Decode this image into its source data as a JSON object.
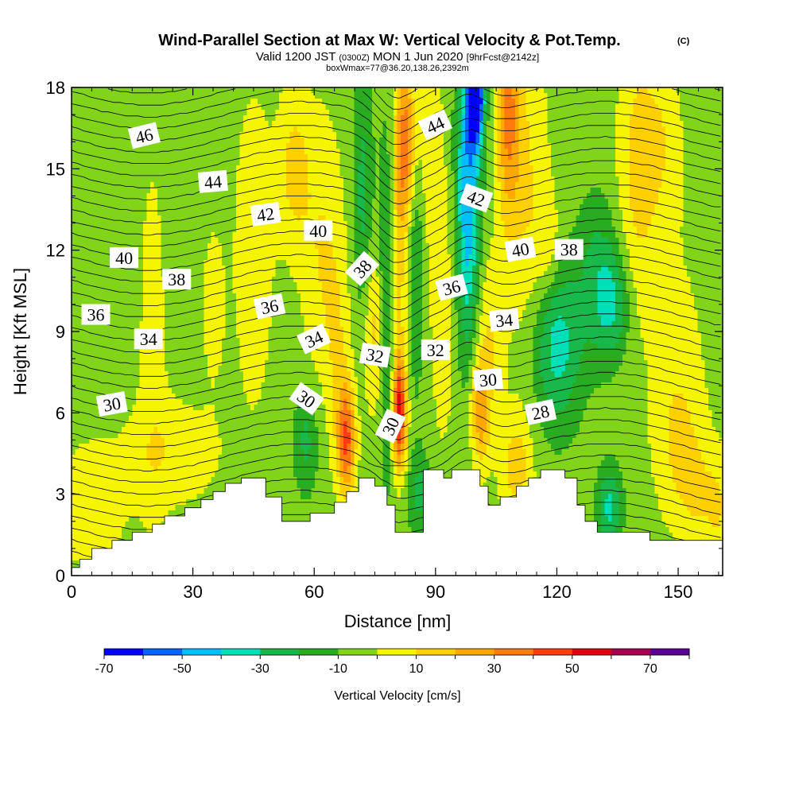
{
  "title": "Wind-Parallel Section at Max W: Vertical Velocity & Pot.Temp.",
  "copyright": "(C)",
  "subtitle": {
    "valid": "Valid 1200 JST",
    "utc": "(0300Z)",
    "date": "MON 1 Jun 2020",
    "fcst": "[9hrFcst@2142z]"
  },
  "box_info": "boxWmax=77@36.20,138.26,2392m",
  "chart_data": {
    "type": "heatmap",
    "xlabel": "Distance [nm]",
    "ylabel": "Height [Kft MSL]",
    "xlim": [
      0,
      161
    ],
    "ylim": [
      0,
      18
    ],
    "x_ticks": [
      0,
      30,
      60,
      90,
      120,
      150
    ],
    "y_ticks": [
      0,
      3,
      6,
      9,
      12,
      15,
      18
    ],
    "x_tick_labels": [
      "0",
      "30",
      "60",
      "90",
      "120",
      "150"
    ],
    "y_tick_labels": [
      "0",
      "3",
      "6",
      "9",
      "12",
      "15",
      "18"
    ],
    "colorbar": {
      "label": "Vertical Velocity [cm/s]",
      "levels": [
        -70,
        -60,
        -50,
        -40,
        -30,
        -20,
        -10,
        0,
        10,
        20,
        30,
        40,
        50,
        60,
        70,
        80
      ],
      "tick_values": [
        -70,
        -50,
        -30,
        -10,
        10,
        30,
        50,
        70
      ],
      "tick_labels": [
        "-70",
        "-50",
        "-30",
        "-10",
        "10",
        "30",
        "50",
        "70"
      ],
      "colors": [
        "#0000ff",
        "#0066ff",
        "#00bfff",
        "#00e0b8",
        "#18b84a",
        "#2aac22",
        "#82d41a",
        "#f5f500",
        "#ffd000",
        "#ffa800",
        "#ff7a10",
        "#ff3c10",
        "#e00010",
        "#a80050",
        "#5a0090"
      ]
    },
    "terrain_kft": [
      [
        0,
        0.3
      ],
      [
        2,
        0.3
      ],
      [
        2,
        0.6
      ],
      [
        5,
        0.6
      ],
      [
        5,
        1.0
      ],
      [
        10,
        1.0
      ],
      [
        10,
        1.3
      ],
      [
        15,
        1.3
      ],
      [
        15,
        1.6
      ],
      [
        20,
        1.6
      ],
      [
        20,
        1.9
      ],
      [
        23,
        1.9
      ],
      [
        23,
        2.2
      ],
      [
        28,
        2.2
      ],
      [
        28,
        2.5
      ],
      [
        32,
        2.5
      ],
      [
        32,
        2.8
      ],
      [
        35,
        2.8
      ],
      [
        35,
        3.1
      ],
      [
        38,
        3.1
      ],
      [
        38,
        3.4
      ],
      [
        42,
        3.4
      ],
      [
        42,
        3.6
      ],
      [
        48,
        3.6
      ],
      [
        48,
        2.9
      ],
      [
        52,
        2.9
      ],
      [
        52,
        2.0
      ],
      [
        59,
        2.0
      ],
      [
        59,
        2.3
      ],
      [
        65,
        2.3
      ],
      [
        65,
        2.7
      ],
      [
        68,
        2.7
      ],
      [
        68,
        3.1
      ],
      [
        71,
        3.1
      ],
      [
        71,
        3.6
      ],
      [
        75,
        3.6
      ],
      [
        75,
        3.3
      ],
      [
        78,
        3.3
      ],
      [
        78,
        2.6
      ],
      [
        80,
        2.6
      ],
      [
        80,
        1.6
      ],
      [
        83,
        1.6
      ],
      [
        83,
        1.6
      ],
      [
        87,
        1.6
      ],
      [
        87,
        3.9
      ],
      [
        92,
        3.9
      ],
      [
        92,
        3.6
      ],
      [
        94,
        3.6
      ],
      [
        94,
        3.9
      ],
      [
        101,
        3.9
      ],
      [
        101,
        3.3
      ],
      [
        103,
        3.3
      ],
      [
        103,
        2.6
      ],
      [
        106,
        2.6
      ],
      [
        106,
        2.9
      ],
      [
        110,
        2.9
      ],
      [
        110,
        3.3
      ],
      [
        113,
        3.3
      ],
      [
        113,
        3.6
      ],
      [
        116,
        3.6
      ],
      [
        116,
        3.9
      ],
      [
        122,
        3.9
      ],
      [
        122,
        3.6
      ],
      [
        125,
        3.6
      ],
      [
        125,
        2.6
      ],
      [
        127,
        2.6
      ],
      [
        127,
        2.0
      ],
      [
        130,
        2.0
      ],
      [
        130,
        1.6
      ],
      [
        143,
        1.6
      ],
      [
        143,
        1.3
      ],
      [
        161,
        1.3
      ]
    ],
    "contour_labels": [
      {
        "text": "46",
        "x": 18,
        "y": 16.2,
        "angle": -14
      },
      {
        "text": "44",
        "x": 35,
        "y": 14.5,
        "angle": -5
      },
      {
        "text": "42",
        "x": 48,
        "y": 13.3,
        "angle": -8
      },
      {
        "text": "40",
        "x": 61,
        "y": 12.7,
        "angle": 0
      },
      {
        "text": "40",
        "x": 13,
        "y": 11.7,
        "angle": 0
      },
      {
        "text": "38",
        "x": 26,
        "y": 10.9,
        "angle": 0
      },
      {
        "text": "38",
        "x": 72,
        "y": 11.3,
        "angle": -48
      },
      {
        "text": "36",
        "x": 6,
        "y": 9.6,
        "angle": 0
      },
      {
        "text": "36",
        "x": 49,
        "y": 9.9,
        "angle": -12
      },
      {
        "text": "34",
        "x": 19,
        "y": 8.7,
        "angle": 0
      },
      {
        "text": "34",
        "x": 60,
        "y": 8.7,
        "angle": -25
      },
      {
        "text": "32",
        "x": 75,
        "y": 8.1,
        "angle": 10
      },
      {
        "text": "32",
        "x": 90,
        "y": 8.3,
        "angle": 0
      },
      {
        "text": "30",
        "x": 10,
        "y": 6.3,
        "angle": -10
      },
      {
        "text": "30",
        "x": 58,
        "y": 6.5,
        "angle": 35
      },
      {
        "text": "30",
        "x": 79,
        "y": 5.5,
        "angle": -65
      },
      {
        "text": "30",
        "x": 103,
        "y": 7.2,
        "angle": -5
      },
      {
        "text": "28",
        "x": 116,
        "y": 6.0,
        "angle": -12
      },
      {
        "text": "36",
        "x": 94,
        "y": 10.6,
        "angle": -15
      },
      {
        "text": "34",
        "x": 107,
        "y": 9.4,
        "angle": -5
      },
      {
        "text": "40",
        "x": 111,
        "y": 12.0,
        "angle": -10
      },
      {
        "text": "38",
        "x": 123,
        "y": 12.0,
        "angle": 0
      },
      {
        "text": "42",
        "x": 100,
        "y": 13.9,
        "angle": 20
      },
      {
        "text": "44",
        "x": 90,
        "y": 16.6,
        "angle": -25
      }
    ]
  }
}
